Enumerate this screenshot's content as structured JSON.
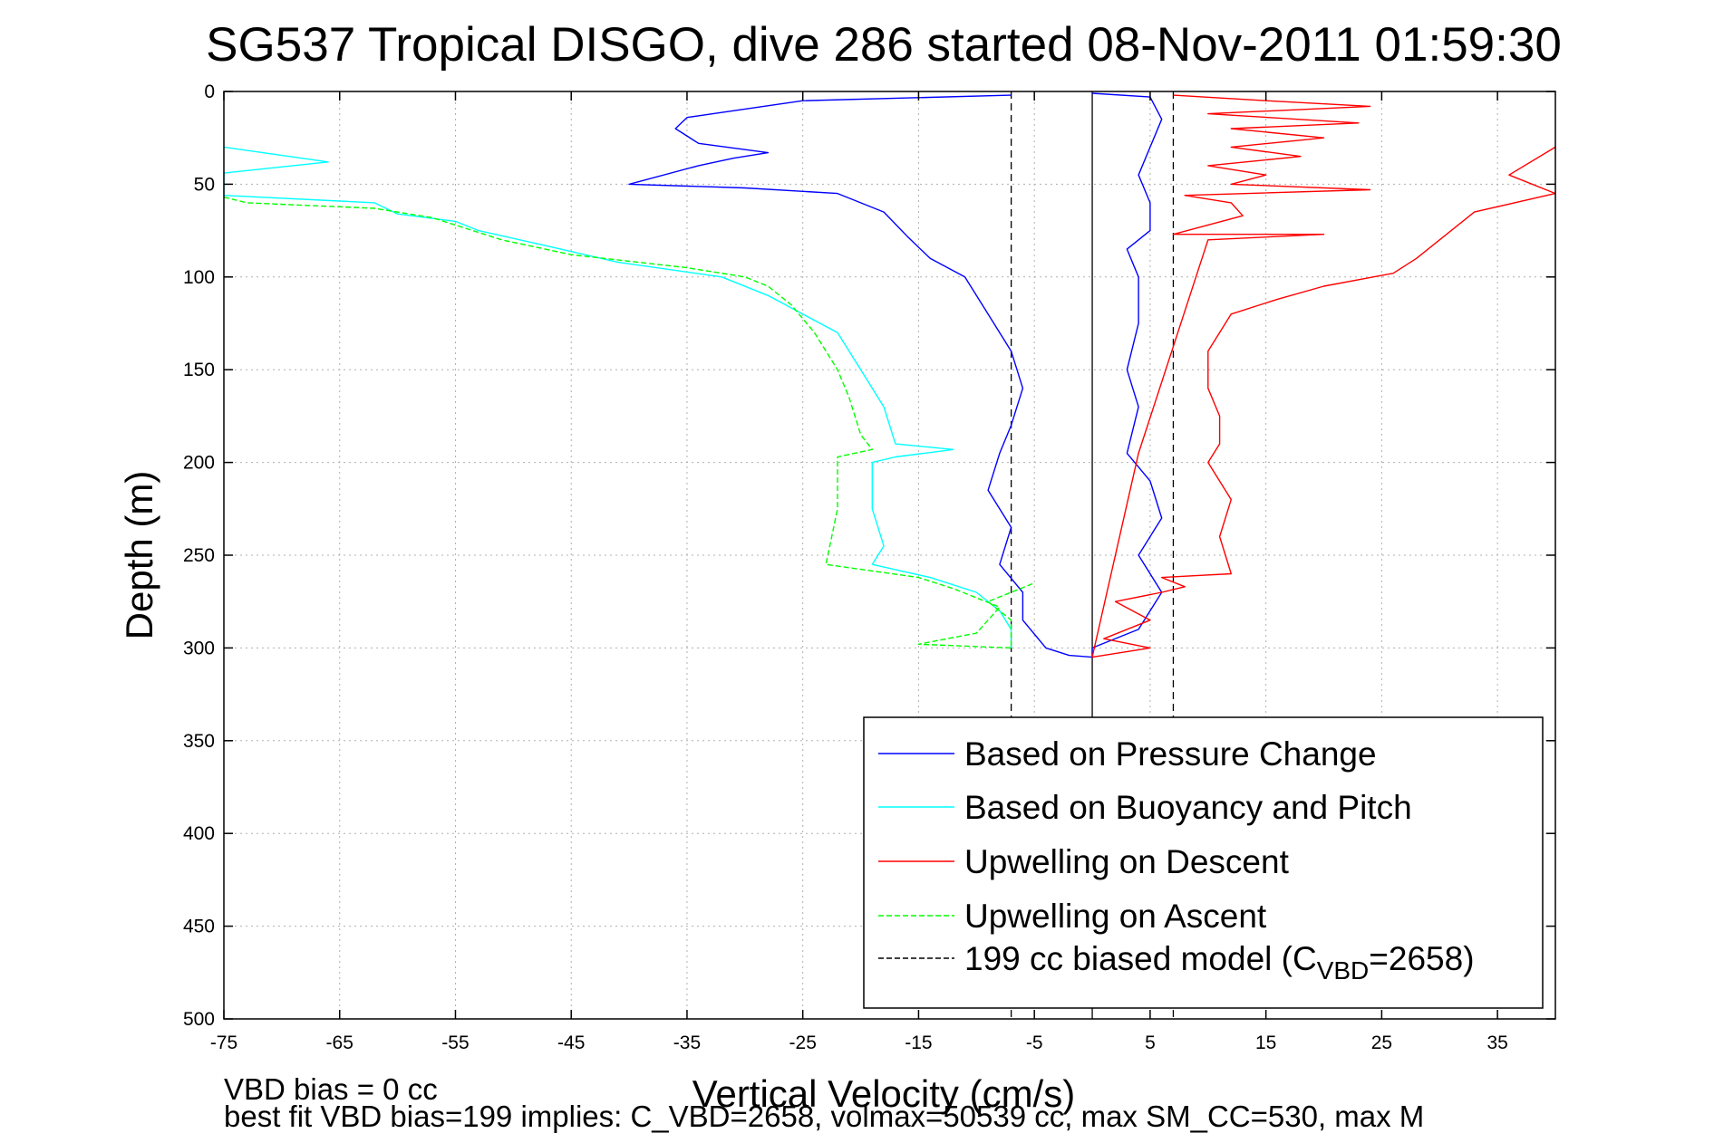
{
  "chart_data": {
    "type": "line",
    "title": "SG537 Tropical DISGO, dive 286 started 08-Nov-2011 01:59:30",
    "xlabel": "Vertical Velocity (cm/s)",
    "ylabel": "Depth (m)",
    "xlim": [
      -75,
      40
    ],
    "ylim": [
      0,
      500
    ],
    "y_reversed": true,
    "xticks": [
      -75,
      -65,
      -55,
      -45,
      -35,
      -25,
      -15,
      -5,
      5,
      15,
      25,
      35
    ],
    "yticks": [
      0,
      50,
      100,
      150,
      200,
      250,
      300,
      350,
      400,
      450,
      500
    ],
    "grid": true,
    "legend_position": "bottom-right",
    "vertical_lines": [
      {
        "x": 0,
        "style": "solid",
        "color": "#000000"
      },
      {
        "x": -7,
        "style": "dashed",
        "color": "#000000"
      },
      {
        "x": 7,
        "style": "dashed",
        "color": "#000000"
      }
    ],
    "series": [
      {
        "name": "Based on Pressure Change",
        "color": "#0000ff",
        "dash": "solid",
        "points": [
          [
            -7,
            2
          ],
          [
            -25,
            5
          ],
          [
            -35,
            14
          ],
          [
            -36,
            20
          ],
          [
            -34,
            28
          ],
          [
            -28,
            33
          ],
          [
            -31,
            36
          ],
          [
            -34,
            40
          ],
          [
            -40,
            50
          ],
          [
            -30,
            52
          ],
          [
            -22,
            55
          ],
          [
            -18,
            65
          ],
          [
            -16,
            78
          ],
          [
            -14,
            90
          ],
          [
            -11,
            100
          ],
          [
            -10,
            110
          ],
          [
            -9,
            120
          ],
          [
            -7,
            140
          ],
          [
            -6,
            160
          ],
          [
            -7,
            180
          ],
          [
            -8,
            195
          ],
          [
            -9,
            215
          ],
          [
            -7,
            235
          ],
          [
            -8,
            255
          ],
          [
            -6,
            270
          ],
          [
            -6,
            285
          ],
          [
            -4,
            300
          ],
          [
            -2,
            304
          ],
          [
            0,
            305
          ],
          [
            0,
            300
          ],
          [
            4,
            290
          ],
          [
            5,
            280
          ],
          [
            6,
            270
          ],
          [
            4,
            250
          ],
          [
            6,
            230
          ],
          [
            5,
            210
          ],
          [
            3,
            195
          ],
          [
            4,
            170
          ],
          [
            3,
            150
          ],
          [
            4,
            125
          ],
          [
            4,
            100
          ],
          [
            3,
            85
          ],
          [
            5,
            75
          ],
          [
            5,
            60
          ],
          [
            4,
            45
          ],
          [
            5,
            30
          ],
          [
            6,
            15
          ],
          [
            5,
            3
          ],
          [
            0,
            1
          ]
        ]
      },
      {
        "name": "Based on Buoyancy and Pitch",
        "color": "#00ffff",
        "dash": "solid",
        "points": [
          [
            -75,
            30
          ],
          [
            -66,
            38
          ],
          [
            -75,
            44
          ],
          [
            -75,
            56
          ],
          [
            -62,
            60
          ],
          [
            -60,
            66
          ],
          [
            -55,
            70
          ],
          [
            -53,
            75
          ],
          [
            -48,
            82
          ],
          [
            -41,
            92
          ],
          [
            -32,
            100
          ],
          [
            -28,
            110
          ],
          [
            -25,
            120
          ],
          [
            -22,
            130
          ],
          [
            -20,
            150
          ],
          [
            -18,
            170
          ],
          [
            -17,
            190
          ],
          [
            -12,
            193
          ],
          [
            -17,
            197
          ],
          [
            -19,
            200
          ],
          [
            -19,
            225
          ],
          [
            -18,
            245
          ],
          [
            -19,
            255
          ],
          [
            -14,
            262
          ],
          [
            -10,
            270
          ],
          [
            -8,
            280
          ],
          [
            -7,
            290
          ],
          [
            -7,
            300
          ]
        ]
      },
      {
        "name": "Upwelling on Descent",
        "color": "#ff0000",
        "dash": "solid",
        "points": [
          [
            7,
            2
          ],
          [
            15,
            5
          ],
          [
            24,
            8
          ],
          [
            10,
            12
          ],
          [
            23,
            17
          ],
          [
            12,
            20
          ],
          [
            20,
            25
          ],
          [
            12,
            30
          ],
          [
            18,
            35
          ],
          [
            10,
            40
          ],
          [
            15,
            45
          ],
          [
            12,
            50
          ],
          [
            24,
            53
          ],
          [
            8,
            56
          ],
          [
            12,
            60
          ],
          [
            13,
            67
          ],
          [
            7,
            77
          ],
          [
            20,
            77
          ],
          [
            10,
            80
          ],
          [
            4,
            195
          ],
          [
            0,
            305
          ],
          [
            5,
            300
          ],
          [
            1,
            295
          ],
          [
            5,
            285
          ],
          [
            2,
            275
          ],
          [
            6,
            270
          ],
          [
            8,
            267
          ],
          [
            6,
            262
          ],
          [
            12,
            260
          ],
          [
            11,
            240
          ],
          [
            12,
            220
          ],
          [
            10,
            200
          ],
          [
            11,
            190
          ],
          [
            11,
            175
          ],
          [
            10,
            160
          ],
          [
            10,
            140
          ],
          [
            12,
            120
          ],
          [
            16,
            112
          ],
          [
            20,
            105
          ],
          [
            26,
            98
          ],
          [
            28,
            90
          ],
          [
            30,
            80
          ],
          [
            33,
            65
          ],
          [
            40,
            55
          ],
          [
            36,
            45
          ],
          [
            40,
            30
          ]
        ]
      },
      {
        "name": "Upwelling on Ascent",
        "color": "#00ff00",
        "dash": "dashed",
        "points": [
          [
            -75,
            57
          ],
          [
            -73,
            60
          ],
          [
            -62,
            63
          ],
          [
            -57,
            68
          ],
          [
            -55,
            72
          ],
          [
            -51,
            80
          ],
          [
            -45,
            88
          ],
          [
            -35,
            95
          ],
          [
            -30,
            100
          ],
          [
            -28,
            105
          ],
          [
            -26,
            115
          ],
          [
            -24,
            130
          ],
          [
            -22,
            150
          ],
          [
            -21,
            165
          ],
          [
            -20,
            185
          ],
          [
            -19,
            193
          ],
          [
            -22,
            197
          ],
          [
            -22,
            225
          ],
          [
            -23,
            255
          ],
          [
            -15,
            262
          ],
          [
            -12,
            268
          ],
          [
            -8,
            278
          ],
          [
            -9,
            285
          ],
          [
            -10,
            292
          ],
          [
            -15,
            298
          ],
          [
            -7,
            300
          ],
          [
            -7,
            285
          ],
          [
            -9,
            275
          ],
          [
            -5,
            265
          ]
        ]
      },
      {
        "name": "199 cc biased model (C",
        "name_sub": "VBD",
        "name_suffix": "=2658)",
        "color": "#000000",
        "dash": "dashed",
        "points": []
      }
    ],
    "notes": [
      "VBD bias = 0 cc",
      "best fit VBD bias=199 implies: C_VBD=2658, volmax=50539 cc, max SM_CC=530, max M"
    ]
  }
}
